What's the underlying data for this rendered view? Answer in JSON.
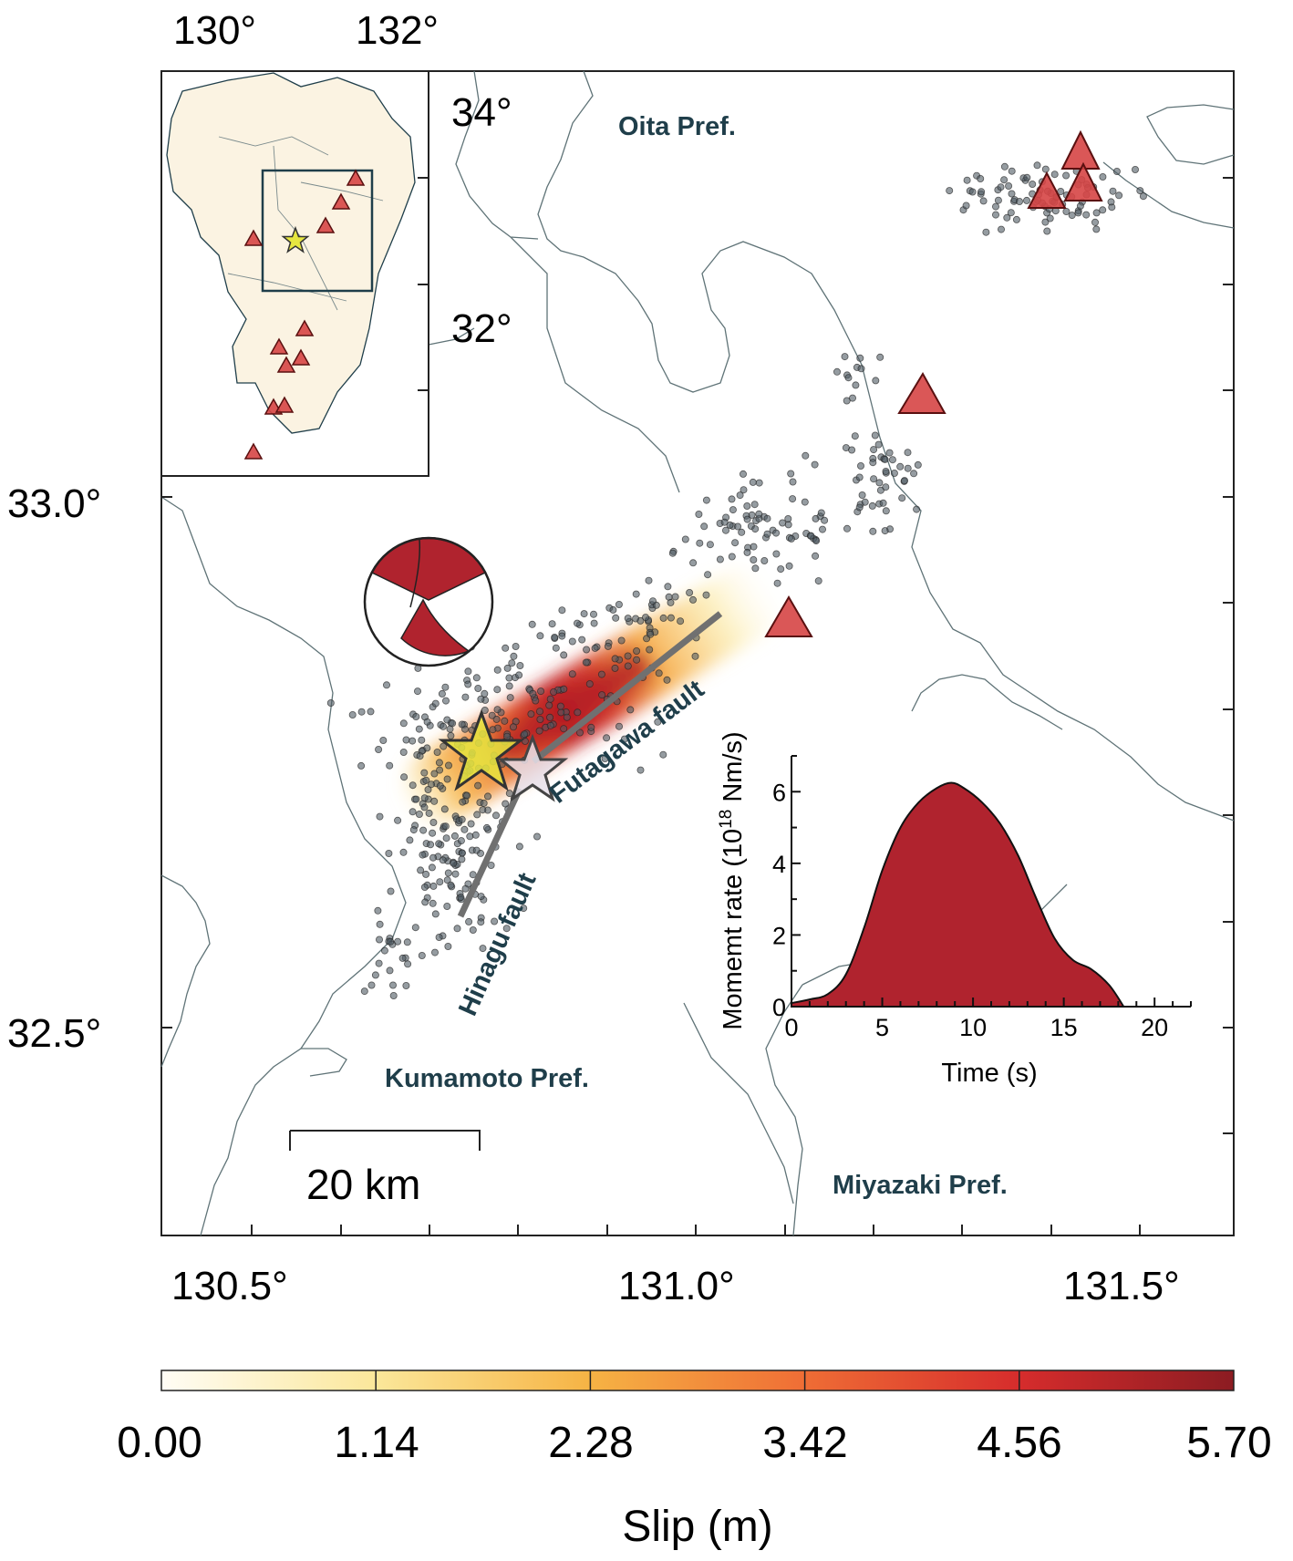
{
  "map": {
    "lon_labels": [
      "130.5°",
      "131.0°",
      "131.5°"
    ],
    "lat_labels": [
      "33.0°",
      "32.5°"
    ],
    "prefectures": [
      "Oita Pref.",
      "Kumamoto Pref.",
      "Miyazaki Pref."
    ],
    "faults": [
      "Futagawa fault",
      "Hinagu fault"
    ],
    "scale_bar": "20 km",
    "colors": {
      "volcano": "#d64545",
      "aftershock": "#4f5a62",
      "fault_trace": "#707070",
      "mainshock_star": "#e6e640",
      "hypocenter_star": "#e8e0ea",
      "mechanism": "#b0232e",
      "coast": "#5f7377",
      "label": "#1f3e4a"
    }
  },
  "inset_map": {
    "lon_labels": [
      "130°",
      "132°"
    ],
    "lat_labels": [
      "34°",
      "32°"
    ],
    "land_color": "#fbf3e2"
  },
  "colorbar": {
    "title": "Slip (m)",
    "tick_labels": [
      "0.00",
      "1.14",
      "2.28",
      "3.42",
      "4.56",
      "5.70"
    ],
    "range": [
      0,
      5.7
    ],
    "colors": [
      "#fffdf5",
      "#fbe79a",
      "#f6b344",
      "#ef6d35",
      "#d62c2c",
      "#8c1c22"
    ]
  },
  "moment_rate": {
    "ylabel": "Momemt rate (10",
    "ylabel_exp": "18",
    "ylabel_unit": " Nm/s)",
    "xlabel": "Time (s)",
    "x_ticks": [
      "0",
      "5",
      "10",
      "15",
      "20"
    ],
    "y_ticks": [
      "0",
      "2",
      "4",
      "6"
    ],
    "fill_color": "#b0232e"
  },
  "chart_data": {
    "type": "area",
    "x": [
      0,
      1,
      2,
      3,
      4,
      5,
      6,
      7,
      8,
      8.8,
      9.5,
      10.5,
      11.5,
      12.5,
      13.5,
      14.5,
      15.5,
      16.5,
      17.5,
      18.3
    ],
    "y": [
      0.1,
      0.2,
      0.35,
      0.9,
      2.2,
      3.8,
      5.0,
      5.7,
      6.1,
      6.25,
      6.1,
      5.7,
      5.1,
      4.2,
      3.0,
      1.9,
      1.3,
      1.05,
      0.6,
      0
    ],
    "xlim": [
      0,
      22
    ],
    "ylim": [
      0,
      7
    ],
    "xlabel": "Time (s)",
    "ylabel": "Momemt rate (10^18 Nm/s)"
  }
}
